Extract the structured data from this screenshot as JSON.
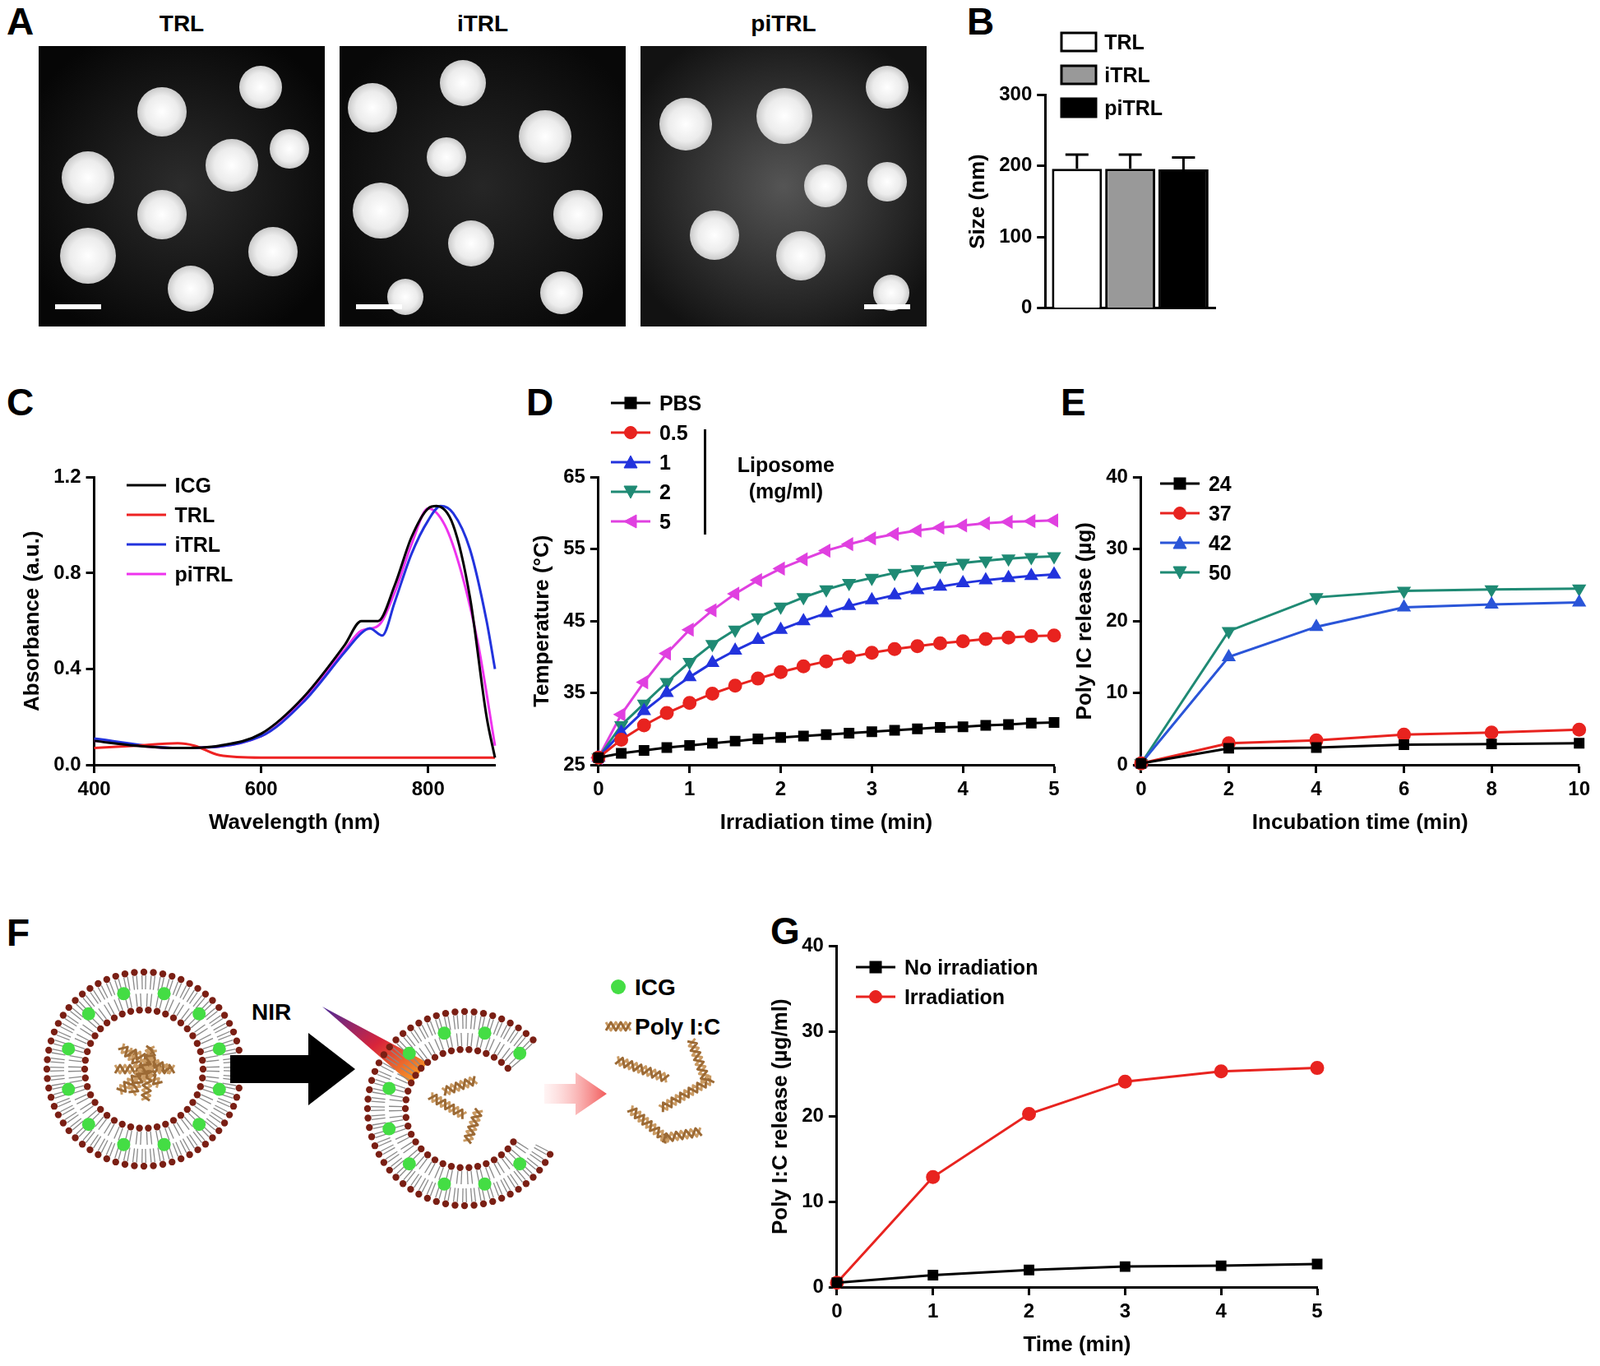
{
  "images": {
    "panel": "A",
    "titles": [
      "TRL",
      "iTRL",
      "piTRL"
    ]
  },
  "diagram": {
    "panel": "F",
    "arrow_label": "NIR",
    "legend": [
      "ICG",
      "Poly I:C"
    ]
  },
  "chart_data": [
    {
      "panel": "B",
      "type": "bar",
      "categories": [
        null
      ],
      "series": [
        {
          "name": "TRL",
          "color": "#ffffff",
          "values": [
            196
          ],
          "errors": [
            20
          ]
        },
        {
          "name": "iTRL",
          "color": "#999999",
          "values": [
            196
          ],
          "errors": [
            20
          ]
        },
        {
          "name": "piTRL",
          "color": "#000000",
          "values": [
            195
          ],
          "errors": [
            17
          ]
        }
      ],
      "y_label": "Size (nm)",
      "ylim": [
        0,
        300
      ],
      "yticks": [
        0,
        100,
        200,
        300
      ],
      "tick_labels": "y",
      "grid": false,
      "legend": "upper left"
    },
    {
      "panel": "C",
      "type": "line",
      "x_label": "Wavelength (nm)",
      "y_label": "Absorbance (a.u.)",
      "xlim": [
        400,
        880
      ],
      "xticks": [
        400,
        600,
        800
      ],
      "ylim": [
        0,
        1.2
      ],
      "yticks": [
        {
          "value": 0,
          "label": "0.0"
        },
        0.4,
        0.8,
        1.2
      ],
      "grid": false,
      "legend": "upper left",
      "series": [
        {
          "name": "ICG",
          "color": "#000000",
          "marker": "none",
          "x": [
            400,
            450,
            500,
            550,
            600,
            650,
            700,
            720,
            740,
            760,
            780,
            800,
            810,
            830,
            850,
            870,
            880
          ],
          "values": [
            0.1,
            0.08,
            0.07,
            0.08,
            0.13,
            0.28,
            0.5,
            0.6,
            0.6,
            0.75,
            0.95,
            1.07,
            1.08,
            1.0,
            0.7,
            0.2,
            0.03
          ]
        },
        {
          "name": "TRL",
          "color": "#ee2222",
          "marker": "none",
          "x": [
            400,
            450,
            500,
            520,
            550,
            600,
            700,
            800,
            880
          ],
          "values": [
            0.07,
            0.08,
            0.09,
            0.08,
            0.04,
            0.03,
            0.03,
            0.03,
            0.03
          ]
        },
        {
          "name": "iTRL",
          "color": "#2233dd",
          "marker": "none",
          "x": [
            400,
            500,
            600,
            650,
            700,
            720,
            730,
            745,
            760,
            780,
            800,
            815,
            830,
            850,
            870,
            880
          ],
          "values": [
            0.11,
            0.07,
            0.12,
            0.26,
            0.47,
            0.55,
            0.57,
            0.54,
            0.68,
            0.88,
            1.02,
            1.08,
            1.05,
            0.9,
            0.6,
            0.4
          ]
        },
        {
          "name": "piTRL",
          "color": "#ee33ee",
          "marker": "none",
          "x": [
            400,
            500,
            600,
            650,
            700,
            720,
            740,
            760,
            780,
            800,
            820,
            840,
            860,
            880
          ],
          "values": [
            0.1,
            0.07,
            0.12,
            0.27,
            0.48,
            0.56,
            0.58,
            0.72,
            0.92,
            1.07,
            1.0,
            0.8,
            0.5,
            0.08
          ]
        }
      ]
    },
    {
      "panel": "D",
      "type": "line",
      "x_label": "Irradiation time (min)",
      "y_label": "Temperature (°C)",
      "xlim": [
        0,
        5
      ],
      "xticks": [
        0,
        1,
        2,
        3,
        4,
        5
      ],
      "ylim": [
        25,
        65
      ],
      "yticks": [
        25,
        35,
        45,
        55,
        65
      ],
      "grid": false,
      "legend": "upper left",
      "annotations": [
        "Liposome (mg/ml)"
      ],
      "x": [
        0,
        0.25,
        0.5,
        0.75,
        1,
        1.25,
        1.5,
        1.75,
        2,
        2.25,
        2.5,
        2.75,
        3,
        3.25,
        3.5,
        3.75,
        4,
        4.25,
        4.5,
        4.75,
        5
      ],
      "series": [
        {
          "name": "PBS",
          "color": "#000000",
          "marker": "square",
          "values": [
            26.0,
            26.6,
            27.0,
            27.4,
            27.7,
            28.0,
            28.3,
            28.6,
            28.8,
            29.0,
            29.2,
            29.4,
            29.6,
            29.8,
            30.0,
            30.2,
            30.3,
            30.5,
            30.6,
            30.8,
            30.9
          ]
        },
        {
          "name": "0.5",
          "color": "#e8231f",
          "marker": "circle",
          "values": [
            26.0,
            28.5,
            30.5,
            32.2,
            33.6,
            34.9,
            36.0,
            37.0,
            37.9,
            38.7,
            39.4,
            40.0,
            40.6,
            41.1,
            41.5,
            41.9,
            42.2,
            42.5,
            42.7,
            42.9,
            43.0
          ]
        },
        {
          "name": "1",
          "color": "#2233dd",
          "marker": "triangle-up",
          "values": [
            26.0,
            29.5,
            32.5,
            35.0,
            37.2,
            39.2,
            40.9,
            42.4,
            43.8,
            45.0,
            46.1,
            47.1,
            47.9,
            48.6,
            49.3,
            49.8,
            50.3,
            50.7,
            51.0,
            51.3,
            51.5
          ]
        },
        {
          "name": "2",
          "color": "#1f8a74",
          "marker": "triangle-down",
          "values": [
            26.0,
            30.5,
            33.5,
            36.5,
            39.3,
            41.8,
            43.8,
            45.5,
            47.0,
            48.3,
            49.4,
            50.3,
            51.0,
            51.7,
            52.2,
            52.7,
            53.1,
            53.4,
            53.7,
            53.9,
            54.0
          ]
        },
        {
          "name": "5",
          "color": "#e040e0",
          "marker": "triangle-left",
          "values": [
            26.0,
            32.0,
            36.5,
            40.5,
            43.8,
            46.5,
            48.8,
            50.7,
            52.3,
            53.6,
            54.8,
            55.7,
            56.5,
            57.1,
            57.6,
            58.0,
            58.3,
            58.6,
            58.8,
            58.9,
            59.0
          ]
        }
      ]
    },
    {
      "panel": "E",
      "type": "line",
      "x_label": "Incubation time (min)",
      "y_label": "Poly IC release (µg)",
      "xlim": [
        0,
        10
      ],
      "xticks": [
        0,
        2,
        4,
        6,
        8,
        10
      ],
      "ylim": [
        0,
        40
      ],
      "yticks": [
        0,
        10,
        20,
        30,
        40
      ],
      "grid": false,
      "legend": "upper left",
      "x": [
        0,
        2,
        4,
        6,
        8,
        10
      ],
      "series": [
        {
          "name": "24",
          "color": "#000000",
          "marker": "square",
          "values": [
            0.2,
            2.3,
            2.4,
            2.8,
            2.9,
            3.0
          ]
        },
        {
          "name": "37",
          "color": "#e8231f",
          "marker": "circle",
          "values": [
            0.2,
            3.0,
            3.4,
            4.2,
            4.5,
            4.9
          ]
        },
        {
          "name": "42",
          "color": "#2a55d8",
          "marker": "triangle-up",
          "values": [
            0.2,
            15.0,
            19.2,
            21.9,
            22.3,
            22.6
          ]
        },
        {
          "name": "50",
          "color": "#1f8a74",
          "marker": "triangle-down",
          "values": [
            0.2,
            18.6,
            23.3,
            24.2,
            24.4,
            24.5
          ]
        }
      ]
    },
    {
      "panel": "G",
      "type": "line",
      "x_label": "Time (min)",
      "y_label": "Poly I:C release (µg/ml)",
      "xlim": [
        0,
        5
      ],
      "xticks": [
        0,
        1,
        2,
        3,
        4,
        5
      ],
      "ylim": [
        0,
        40
      ],
      "yticks": [
        0,
        10,
        20,
        30,
        40
      ],
      "grid": false,
      "legend": "upper left",
      "x": [
        0,
        1,
        2,
        3,
        4,
        5
      ],
      "series": [
        {
          "name": "No irradiation",
          "color": "#000000",
          "marker": "square",
          "values": [
            0.5,
            1.4,
            2.0,
            2.4,
            2.5,
            2.7
          ]
        },
        {
          "name": "Irradiation",
          "color": "#e8231f",
          "marker": "circle",
          "values": [
            0.5,
            12.9,
            20.3,
            24.1,
            25.3,
            25.7
          ]
        }
      ]
    }
  ]
}
